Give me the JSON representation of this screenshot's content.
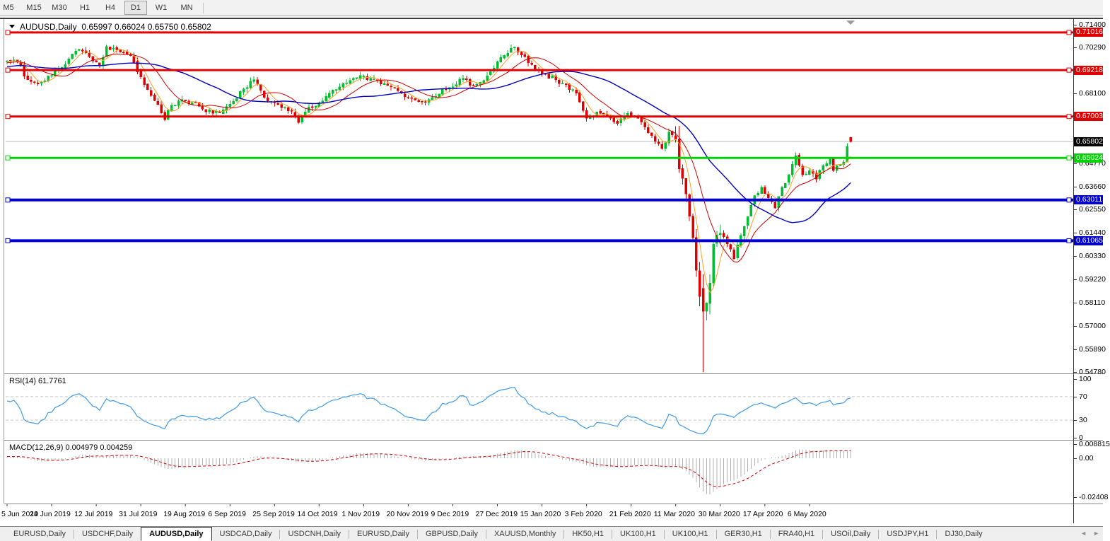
{
  "window": {
    "title_text": "AUDUSD,Daily  0.65997 0.66024 0.65750 0.65802"
  },
  "toolbar": {
    "timeframes": [
      "M5",
      "M15",
      "M30",
      "H1",
      "H4",
      "D1",
      "W1",
      "MN"
    ],
    "active": "D1"
  },
  "chart_data": {
    "type": "candlestick",
    "symbol": "AUDUSD",
    "period": "Daily",
    "ohlc": {
      "open": 0.65997,
      "high": 0.66024,
      "low": 0.6575,
      "close": 0.65802
    },
    "ylim": [
      0.5478,
      0.714
    ],
    "y_ticks": [
      "0.71400",
      "0.70290",
      "0.68100",
      "0.64770",
      "0.63660",
      "0.62550",
      "0.61440",
      "0.60330",
      "0.59220",
      "0.58110",
      "0.57000",
      "0.55890",
      "0.54780"
    ],
    "x_labels": [
      {
        "i": 0,
        "t": "5 Jun 2019"
      },
      {
        "i": 13,
        "t": "24 Jun 2019"
      },
      {
        "i": 26,
        "t": "12 Jul 2019"
      },
      {
        "i": 39,
        "t": "31 Jul 2019"
      },
      {
        "i": 52,
        "t": "19 Aug 2019"
      },
      {
        "i": 65,
        "t": "6 Sep 2019"
      },
      {
        "i": 78,
        "t": "25 Sep 2019"
      },
      {
        "i": 91,
        "t": "14 Oct 2019"
      },
      {
        "i": 104,
        "t": "1 Nov 2019"
      },
      {
        "i": 117,
        "t": "20 Nov 2019"
      },
      {
        "i": 130,
        "t": "9 Dec 2019"
      },
      {
        "i": 143,
        "t": "27 Dec 2019"
      },
      {
        "i": 156,
        "t": "15 Jan 2020"
      },
      {
        "i": 169,
        "t": "3 Feb 2020"
      },
      {
        "i": 182,
        "t": "21 Feb 2020"
      },
      {
        "i": 195,
        "t": "11 Mar 2020"
      },
      {
        "i": 208,
        "t": "30 Mar 2020"
      },
      {
        "i": 221,
        "t": "17 Apr 2020"
      },
      {
        "i": 234,
        "t": "6 May 2020"
      }
    ],
    "candle_count": 247,
    "candle_colors": {
      "up": "#00BF2F",
      "down": "#E00000"
    },
    "price_anchors": [
      [
        0,
        0.6966
      ],
      [
        3,
        0.696
      ],
      [
        6,
        0.6875
      ],
      [
        9,
        0.6855
      ],
      [
        12,
        0.6895
      ],
      [
        15,
        0.6925
      ],
      [
        18,
        0.6975
      ],
      [
        21,
        0.7021
      ],
      [
        24,
        0.6985
      ],
      [
        27,
        0.6942
      ],
      [
        29,
        0.7035
      ],
      [
        33,
        0.7008
      ],
      [
        36,
        0.699
      ],
      [
        39,
        0.689
      ],
      [
        42,
        0.68
      ],
      [
        44,
        0.6758
      ],
      [
        46,
        0.6685
      ],
      [
        48,
        0.6755
      ],
      [
        51,
        0.6782
      ],
      [
        54,
        0.6766
      ],
      [
        57,
        0.6736
      ],
      [
        60,
        0.6716
      ],
      [
        63,
        0.6732
      ],
      [
        66,
        0.6772
      ],
      [
        69,
        0.6832
      ],
      [
        72,
        0.6876
      ],
      [
        75,
        0.6792
      ],
      [
        78,
        0.6766
      ],
      [
        81,
        0.6746
      ],
      [
        84,
        0.67
      ],
      [
        85,
        0.6672
      ],
      [
        88,
        0.6746
      ],
      [
        91,
        0.6766
      ],
      [
        94,
        0.6812
      ],
      [
        97,
        0.6842
      ],
      [
        100,
        0.6872
      ],
      [
        103,
        0.6896
      ],
      [
        106,
        0.6882
      ],
      [
        109,
        0.6856
      ],
      [
        112,
        0.6842
      ],
      [
        115,
        0.6812
      ],
      [
        118,
        0.6786
      ],
      [
        121,
        0.677
      ],
      [
        124,
        0.6792
      ],
      [
        127,
        0.6832
      ],
      [
        130,
        0.6842
      ],
      [
        133,
        0.6882
      ],
      [
        136,
        0.6846
      ],
      [
        139,
        0.6872
      ],
      [
        142,
        0.6932
      ],
      [
        145,
        0.6992
      ],
      [
        148,
        0.7032
      ],
      [
        151,
        0.6986
      ],
      [
        154,
        0.6926
      ],
      [
        157,
        0.6902
      ],
      [
        160,
        0.6876
      ],
      [
        163,
        0.6852
      ],
      [
        166,
        0.6812
      ],
      [
        169,
        0.6692
      ],
      [
        172,
        0.6722
      ],
      [
        175,
        0.6702
      ],
      [
        178,
        0.6666
      ],
      [
        181,
        0.6716
      ],
      [
        184,
        0.6692
      ],
      [
        187,
        0.6622
      ],
      [
        189,
        0.6582
      ],
      [
        191,
        0.6546
      ],
      [
        193,
        0.6626
      ],
      [
        195,
        0.6592
      ],
      [
        196,
        0.645
      ],
      [
        198,
        0.633
      ],
      [
        200,
        0.612
      ],
      [
        202,
        0.584
      ],
      [
        203,
        0.577
      ],
      [
        204,
        0.581
      ],
      [
        205,
        0.5905
      ],
      [
        206,
        0.609
      ],
      [
        207,
        0.6135
      ],
      [
        208,
        0.6142
      ],
      [
        210,
        0.6092
      ],
      [
        212,
        0.6022
      ],
      [
        214,
        0.6132
      ],
      [
        216,
        0.6222
      ],
      [
        218,
        0.6322
      ],
      [
        220,
        0.6362
      ],
      [
        222,
        0.6312
      ],
      [
        224,
        0.6262
      ],
      [
        226,
        0.6362
      ],
      [
        228,
        0.6422
      ],
      [
        230,
        0.6512
      ],
      [
        232,
        0.6422
      ],
      [
        234,
        0.6442
      ],
      [
        236,
        0.6402
      ],
      [
        238,
        0.6466
      ],
      [
        240,
        0.6502
      ],
      [
        241,
        0.6442
      ],
      [
        243,
        0.6472
      ],
      [
        244,
        0.6482
      ],
      [
        245,
        0.6556
      ],
      [
        246,
        0.658
      ]
    ],
    "forced_candles": {
      "196": [
        0.6592,
        0.6655,
        0.6432,
        0.645
      ],
      "203": [
        0.588,
        0.5945,
        0.548,
        0.577
      ],
      "246": [
        0.65997,
        0.66024,
        0.6575,
        0.65802
      ]
    },
    "horizontal_lines": [
      {
        "label": "0.71016",
        "price": 0.71016,
        "color": "#E00000",
        "width": 3
      },
      {
        "label": "0.69218",
        "price": 0.69218,
        "color": "#E00000",
        "width": 3
      },
      {
        "label": "0.67003",
        "price": 0.67003,
        "color": "#E00000",
        "width": 3
      },
      {
        "label": "0.65024",
        "price": 0.65024,
        "color": "#00D400",
        "width": 3
      },
      {
        "label": "0.63011",
        "price": 0.63011,
        "color": "#0000D4",
        "width": 4
      },
      {
        "label": "0.61065",
        "price": 0.61065,
        "color": "#0000D4",
        "width": 4
      }
    ],
    "current_price": {
      "label": "0.65802",
      "price": 0.65802,
      "line_color": "#BDBDBD",
      "chip_bg": "#000000"
    },
    "moving_averages": [
      {
        "period": 5,
        "color": "#FFA022",
        "width": 1
      },
      {
        "period": 13,
        "color": "#CC0000",
        "width": 1
      },
      {
        "period": 34,
        "color": "#0000C0",
        "width": 1.4
      }
    ],
    "rsi": {
      "label": "RSI(14) 61.7761",
      "period": 14,
      "last": 61.7761,
      "scale_labels": [
        "100",
        "70",
        "30",
        "0"
      ],
      "levels": [
        70,
        30
      ],
      "line_color": "#3E9AE8"
    },
    "macd": {
      "label": "MACD(12,26,9) 0.004979 0.004259",
      "fast": 12,
      "slow": 26,
      "signal": 9,
      "last_macd": 0.004979,
      "last_signal": 0.004259,
      "scale_labels": [
        "0.008815",
        "0.00",
        "-0.02408"
      ],
      "hist_color": "#B0B0B0",
      "signal_color": "#CE0000"
    }
  },
  "tabs": {
    "items": [
      "EURUSD,Daily",
      "USDCHF,Daily",
      "AUDUSD,Daily",
      "USDCAD,Daily",
      "USDCNH,Daily",
      "EURUSD,Daily",
      "GBPUSD,Daily",
      "XAUUSD,Monthly",
      "HK50,H1",
      "UK100,H1",
      "UK100,H1",
      "GER30,H1",
      "FRA40,H1",
      "USOil,Daily",
      "USDJPY,H1",
      "DJ30,Daily"
    ],
    "active_index": 2,
    "scroll_left_icon": "◄",
    "scroll_right_icon": "►"
  }
}
